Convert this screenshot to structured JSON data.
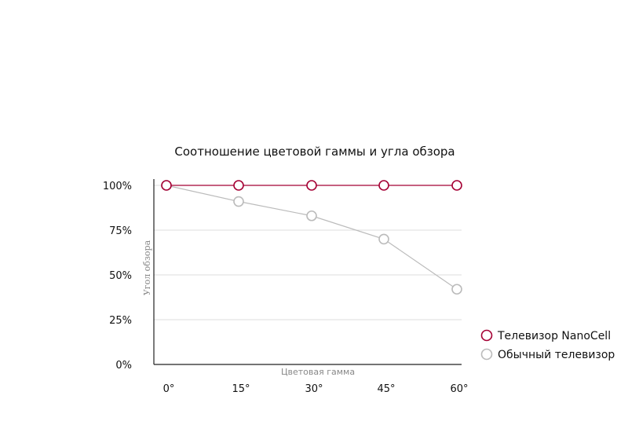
{
  "chart_data": {
    "type": "line",
    "title": "Соотношение цветовой гаммы и угла обзора",
    "xlabel": "Цветовая гамма",
    "ylabel": "Угол обзора",
    "categories": [
      "0°",
      "15°",
      "30°",
      "45°",
      "60°"
    ],
    "y_ticks": [
      {
        "value": 100,
        "label": "100%"
      },
      {
        "value": 75,
        "label": "75%"
      },
      {
        "value": 50,
        "label": "50%"
      },
      {
        "value": 25,
        "label": "25%"
      },
      {
        "value": 0,
        "label": "0%"
      }
    ],
    "ylim": [
      0,
      100
    ],
    "grid": true,
    "legend_position": "right",
    "series": [
      {
        "name": "Телевизор NanoCell",
        "values": [
          100,
          100,
          100,
          100,
          100
        ],
        "color": "#a50034"
      },
      {
        "name": "Обычный телевизор",
        "values": [
          100,
          91,
          83,
          70,
          42
        ],
        "color": "#bbbbbb"
      }
    ]
  }
}
